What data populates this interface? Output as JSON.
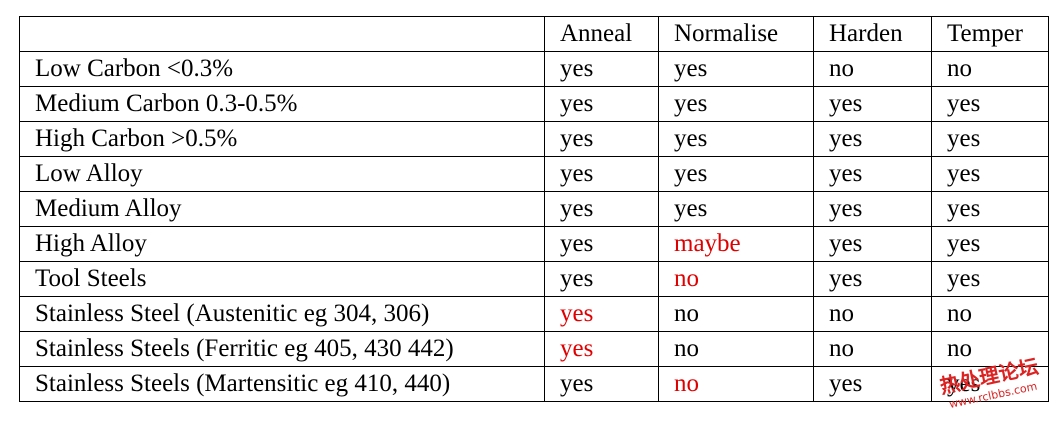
{
  "table": {
    "header": [
      "",
      "Anneal",
      "Normalise",
      "Harden",
      "Temper"
    ],
    "rows": [
      [
        "Low Carbon <0.3%",
        "yes",
        "yes",
        "no",
        "no"
      ],
      [
        "Medium Carbon 0.3-0.5%",
        "yes",
        "yes",
        "yes",
        "yes"
      ],
      [
        "High Carbon >0.5%",
        "yes",
        "yes",
        "yes",
        "yes"
      ],
      [
        "Low Alloy",
        "yes",
        "yes",
        "yes",
        "yes"
      ],
      [
        "Medium Alloy",
        "yes",
        "yes",
        "yes",
        "yes"
      ],
      [
        "High Alloy",
        "yes",
        {
          "text": "maybe",
          "color": "#e00000"
        },
        "yes",
        "yes"
      ],
      [
        "Tool Steels",
        "yes",
        {
          "text": "no",
          "color": "#e00000"
        },
        "yes",
        "yes"
      ],
      [
        "Stainless Steel (Austenitic eg 304, 306)",
        {
          "text": "yes",
          "color": "#e00000"
        },
        "no",
        "no",
        "no"
      ],
      [
        "Stainless Steels (Ferritic eg 405, 430 442)",
        {
          "text": "yes",
          "color": "#e00000"
        },
        "no",
        "no",
        "no"
      ],
      [
        "Stainless Steels (Martensitic eg 410, 440)",
        "yes",
        {
          "text": "no",
          "color": "#e00000"
        },
        "yes",
        "yes"
      ]
    ]
  },
  "watermark": {
    "title": "热处理论坛",
    "url": "www.rclbbs.com"
  }
}
